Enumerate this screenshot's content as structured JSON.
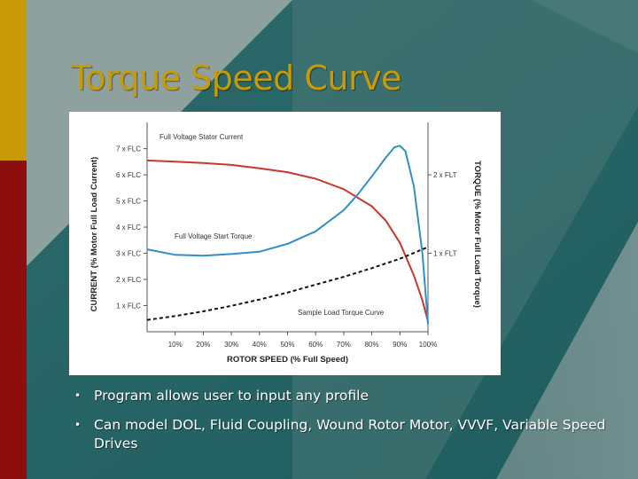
{
  "slide": {
    "title": "Torque Speed Curve",
    "bullets": [
      "Program allows user to input any profile",
      "Can model DOL, Fluid Coupling, Wound Rotor Motor, VVVF, Variable Speed Drives"
    ],
    "colors": {
      "title": "#c79b06",
      "sidebar_top": "#c99a05",
      "sidebar_bottom": "#8c0f0d"
    }
  },
  "chart_data": {
    "type": "line",
    "xlabel": "ROTOR SPEED (% Full Speed)",
    "ylabel_left": "CURRENT (% Motor Full Load Current)",
    "ylabel_right": "TORQUE (% Motor Full Load Torque)",
    "x_ticks": [
      "10%",
      "20%",
      "30%",
      "40%",
      "50%",
      "60%",
      "70%",
      "80%",
      "90%",
      "100%"
    ],
    "y_left_ticks": [
      "1 x FLC",
      "2 x FLC",
      "3 x FLC",
      "4 x FLC",
      "5 x FLC",
      "6 x FLC",
      "7 x FLC"
    ],
    "y_right_ticks": [
      {
        "label": "1 x FLT",
        "value": 1
      },
      {
        "label": "2 x FLT",
        "value": 2
      }
    ],
    "xlim": [
      0,
      100
    ],
    "ylim_left": [
      0,
      7.8
    ],
    "ylim_right": [
      0,
      2.6
    ],
    "annotations": [
      "Full Voltage Stator Current",
      "Full Voltage Start Torque",
      "Sample Load Torque Curve"
    ],
    "series": [
      {
        "name": "Full Voltage Stator Current",
        "axis": "left",
        "color": "#c8372d",
        "style": "solid",
        "x": [
          0,
          10,
          20,
          30,
          40,
          50,
          60,
          70,
          80,
          85,
          90,
          95,
          98,
          100
        ],
        "y": [
          6.55,
          6.5,
          6.45,
          6.38,
          6.25,
          6.1,
          5.85,
          5.45,
          4.8,
          4.25,
          3.4,
          2.15,
          1.2,
          0.4
        ]
      },
      {
        "name": "Full Voltage Start Torque",
        "axis": "right",
        "color": "#2f8fc8",
        "style": "solid",
        "x": [
          0,
          10,
          20,
          30,
          40,
          50,
          60,
          70,
          75,
          80,
          85,
          88,
          90,
          92,
          95,
          98,
          100
        ],
        "y": [
          1.05,
          0.98,
          0.97,
          0.99,
          1.02,
          1.12,
          1.28,
          1.55,
          1.75,
          1.98,
          2.22,
          2.35,
          2.37,
          2.3,
          1.85,
          1.0,
          0.1
        ]
      },
      {
        "name": "Sample Load Torque Curve",
        "axis": "right",
        "color": "#111111",
        "style": "dashed",
        "x": [
          0,
          10,
          20,
          30,
          40,
          50,
          60,
          70,
          80,
          90,
          100
        ],
        "y": [
          0.15,
          0.2,
          0.26,
          0.33,
          0.41,
          0.5,
          0.6,
          0.7,
          0.81,
          0.93,
          1.08
        ]
      }
    ],
    "grid": false,
    "legend": "none"
  }
}
